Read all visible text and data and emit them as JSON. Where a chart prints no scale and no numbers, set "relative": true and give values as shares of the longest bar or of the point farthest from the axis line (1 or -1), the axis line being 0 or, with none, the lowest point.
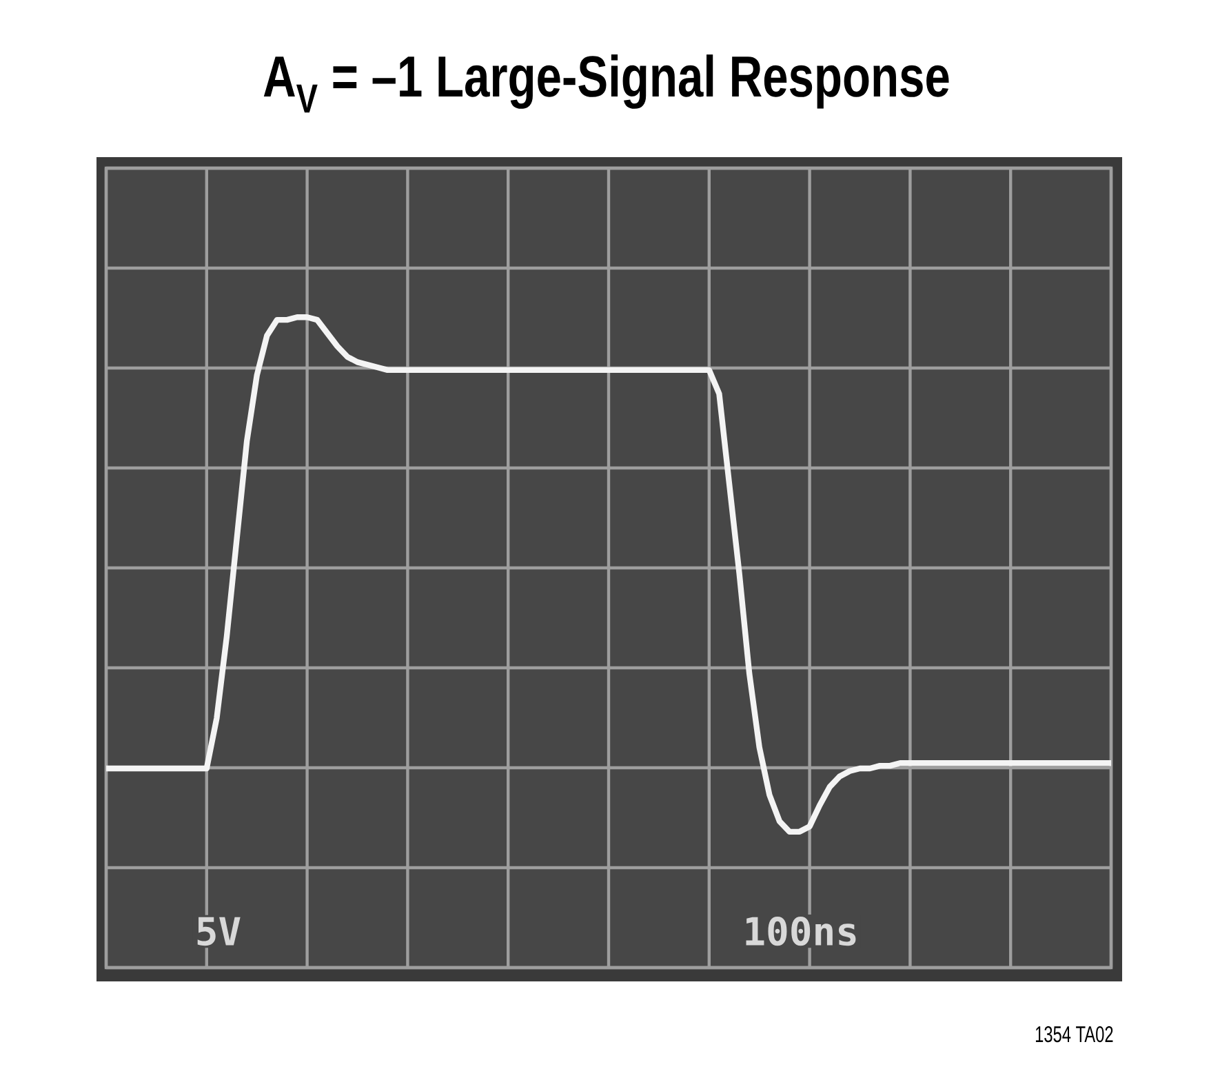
{
  "chart_data": {
    "type": "line",
    "title": "A$_{V}$ = –1 Large-Signal Response",
    "categories": [
      null,
      null,
      null,
      null,
      null,
      null,
      null,
      null,
      null,
      null,
      null,
      null,
      null,
      null,
      null,
      null,
      null,
      null,
      null,
      null,
      null,
      null,
      null,
      null,
      null,
      null,
      null,
      null,
      null,
      null,
      null,
      null,
      null,
      null,
      null,
      null,
      null,
      null,
      null,
      null,
      null,
      null,
      null,
      null,
      null,
      null,
      null,
      null,
      null,
      null,
      null,
      null,
      null,
      null,
      null,
      null,
      null,
      null,
      null,
      null,
      null,
      null,
      null,
      null,
      null,
      null,
      null,
      null,
      null,
      null,
      null,
      null,
      null,
      null,
      null,
      null,
      null,
      null,
      null,
      null,
      null,
      null,
      null,
      null,
      null,
      null,
      null,
      null,
      null,
      null,
      null,
      null,
      null,
      null,
      null,
      null,
      null,
      null,
      null,
      null,
      null
    ],
    "values": [
      -0.76,
      -0.76,
      -0.76,
      -0.76,
      -0.76,
      -0.76,
      -0.76,
      -0.76,
      -0.76,
      -0.76,
      -0.76,
      -0.57,
      -0.26,
      0.11,
      0.48,
      0.73,
      0.88,
      0.94,
      0.94,
      0.95,
      0.95,
      0.94,
      0.89,
      0.84,
      0.8,
      0.78,
      0.77,
      0.76,
      0.75,
      0.75,
      0.75,
      0.75,
      0.75,
      0.75,
      0.75,
      0.75,
      0.75,
      0.75,
      0.75,
      0.75,
      0.75,
      0.75,
      0.75,
      0.75,
      0.75,
      0.75,
      0.75,
      0.75,
      0.75,
      0.75,
      0.75,
      0.75,
      0.75,
      0.75,
      0.75,
      0.75,
      0.75,
      0.75,
      0.75,
      0.75,
      0.75,
      0.66,
      0.32,
      -0.02,
      -0.4,
      -0.68,
      -0.86,
      -0.96,
      -1.0,
      -1.0,
      -0.98,
      -0.9,
      -0.83,
      -0.79,
      -0.77,
      -0.76,
      -0.76,
      -0.75,
      -0.75,
      -0.74,
      -0.74,
      -0.74,
      -0.74,
      -0.74,
      -0.74,
      -0.74,
      -0.74,
      -0.74,
      -0.74,
      -0.74,
      -0.74,
      -0.74,
      -0.74,
      -0.74,
      -0.74,
      -0.74,
      -0.74,
      -0.74,
      -0.74,
      -0.74,
      -0.74
    ],
    "color": "#f4f4f4",
    "relative": true,
    "grid": true,
    "line_style": "solid",
    "annotations": [
      "5V",
      "100ns",
      "1354 TA02"
    ]
  }
}
